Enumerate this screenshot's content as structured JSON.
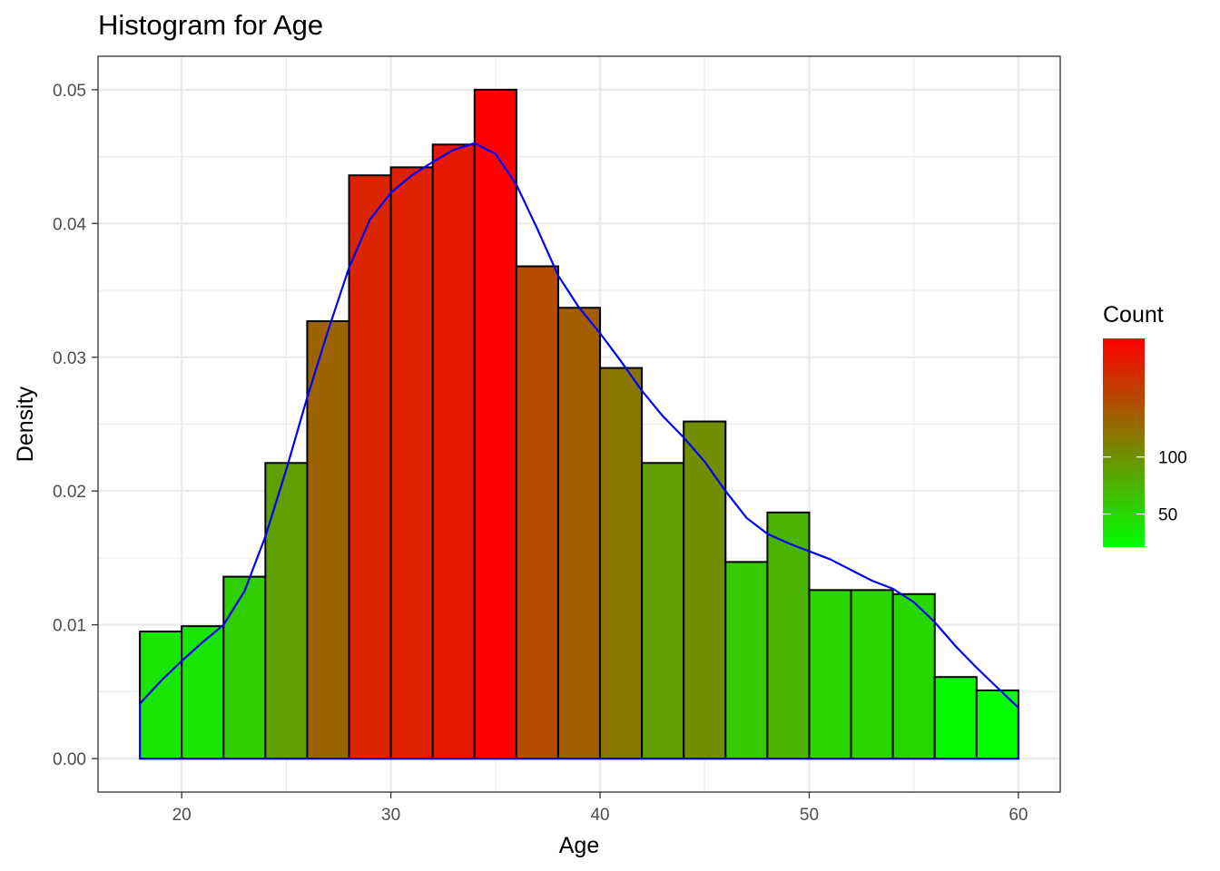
{
  "chart_data": {
    "type": "bar",
    "title": "Histogram for Age",
    "xlabel": "Age",
    "ylabel": "Density",
    "xlim": [
      16,
      62
    ],
    "ylim": [
      -0.0025,
      0.0525
    ],
    "x_ticks": [
      20,
      30,
      40,
      50,
      60
    ],
    "x_tick_labels": [
      "20",
      "30",
      "40",
      "50",
      "60"
    ],
    "y_ticks": [
      0,
      0.01,
      0.02,
      0.03,
      0.04,
      0.05
    ],
    "y_tick_labels": [
      "0.00",
      "0.01",
      "0.02",
      "0.03",
      "0.04",
      "0.05"
    ],
    "grid": true,
    "bin_width": 2,
    "bins": [
      {
        "x0": 18,
        "x1": 20,
        "density": 0.0095,
        "count": 39
      },
      {
        "x0": 20,
        "x1": 22,
        "density": 0.0099,
        "count": 40
      },
      {
        "x0": 22,
        "x1": 24,
        "density": 0.0136,
        "count": 56
      },
      {
        "x0": 24,
        "x1": 26,
        "density": 0.0221,
        "count": 90
      },
      {
        "x0": 26,
        "x1": 28,
        "density": 0.0327,
        "count": 133
      },
      {
        "x0": 28,
        "x1": 30,
        "density": 0.0436,
        "count": 178
      },
      {
        "x0": 30,
        "x1": 32,
        "density": 0.0442,
        "count": 180
      },
      {
        "x0": 32,
        "x1": 34,
        "density": 0.0459,
        "count": 187
      },
      {
        "x0": 34,
        "x1": 36,
        "density": 0.05,
        "count": 204
      },
      {
        "x0": 36,
        "x1": 38,
        "density": 0.0368,
        "count": 150
      },
      {
        "x0": 38,
        "x1": 40,
        "density": 0.0337,
        "count": 137
      },
      {
        "x0": 40,
        "x1": 42,
        "density": 0.0292,
        "count": 119
      },
      {
        "x0": 42,
        "x1": 44,
        "density": 0.0221,
        "count": 90
      },
      {
        "x0": 44,
        "x1": 46,
        "density": 0.0252,
        "count": 103
      },
      {
        "x0": 46,
        "x1": 48,
        "density": 0.0147,
        "count": 60
      },
      {
        "x0": 48,
        "x1": 50,
        "density": 0.0184,
        "count": 75
      },
      {
        "x0": 50,
        "x1": 52,
        "density": 0.0126,
        "count": 51
      },
      {
        "x0": 52,
        "x1": 54,
        "density": 0.0126,
        "count": 51
      },
      {
        "x0": 54,
        "x1": 56,
        "density": 0.0123,
        "count": 50
      },
      {
        "x0": 56,
        "x1": 58,
        "density": 0.0061,
        "count": 25
      },
      {
        "x0": 58,
        "x1": 60,
        "density": 0.0051,
        "count": 21
      }
    ],
    "density_curve": {
      "color": "#0000FF",
      "points": [
        [
          18,
          0.0041
        ],
        [
          19,
          0.0058
        ],
        [
          20,
          0.0073
        ],
        [
          21,
          0.0087
        ],
        [
          22,
          0.01
        ],
        [
          23,
          0.0125
        ],
        [
          24,
          0.0166
        ],
        [
          25,
          0.0216
        ],
        [
          26,
          0.027
        ],
        [
          27,
          0.032
        ],
        [
          28,
          0.0367
        ],
        [
          29,
          0.0403
        ],
        [
          30,
          0.0423
        ],
        [
          31,
          0.0436
        ],
        [
          32,
          0.0446
        ],
        [
          33,
          0.0455
        ],
        [
          34,
          0.046
        ],
        [
          35,
          0.0452
        ],
        [
          36,
          0.0429
        ],
        [
          37,
          0.0396
        ],
        [
          38,
          0.0361
        ],
        [
          39,
          0.0337
        ],
        [
          40,
          0.0318
        ],
        [
          41,
          0.0297
        ],
        [
          42,
          0.0275
        ],
        [
          43,
          0.0256
        ],
        [
          44,
          0.024
        ],
        [
          45,
          0.0222
        ],
        [
          46,
          0.02
        ],
        [
          47,
          0.018
        ],
        [
          48,
          0.0168
        ],
        [
          49,
          0.0161
        ],
        [
          50,
          0.0155
        ],
        [
          51,
          0.0149
        ],
        [
          52,
          0.0141
        ],
        [
          53,
          0.0133
        ],
        [
          54,
          0.0127
        ],
        [
          55,
          0.0117
        ],
        [
          56,
          0.0102
        ],
        [
          57,
          0.0084
        ],
        [
          58,
          0.0068
        ],
        [
          59,
          0.0053
        ],
        [
          60,
          0.0038
        ]
      ]
    },
    "legend": {
      "title": "Count",
      "position": "right",
      "low_color": "#00FF00",
      "high_color": "#FF0000",
      "range": [
        21,
        204
      ],
      "ticks": [
        50,
        100
      ],
      "tick_labels": [
        "50",
        "100"
      ]
    },
    "colors": {
      "bar_outline": "#000000",
      "grid": "#EBEBEB",
      "panel_border": "#333333",
      "density_line": "#0000FF"
    }
  }
}
